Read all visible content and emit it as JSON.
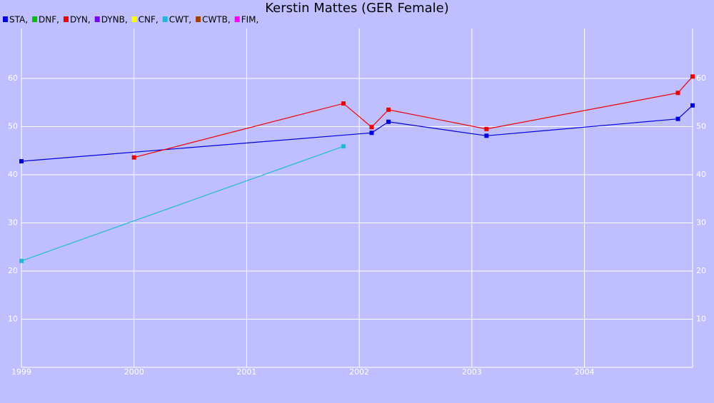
{
  "chart_data": {
    "type": "line",
    "title": "Kerstin Mattes (GER Female)",
    "xlim": [
      1999,
      2004.96
    ],
    "xticks": [
      1999,
      2000,
      2001,
      2002,
      2003,
      2004
    ],
    "ylim": [
      0,
      70
    ],
    "yticks": [
      10,
      20,
      30,
      40,
      50,
      60
    ],
    "grid": true,
    "series": [
      {
        "name": "STA,",
        "color": "#0000dd",
        "x": [
          1999.0,
          2002.11,
          2002.26,
          2003.13,
          2004.83,
          2004.96
        ],
        "values": [
          42.8,
          48.7,
          51.0,
          48.1,
          51.6,
          54.4
        ]
      },
      {
        "name": "DNF,",
        "color": "#00c000",
        "x": [],
        "values": []
      },
      {
        "name": "DYN,",
        "color": "#ee0000",
        "x": [
          2000.0,
          2001.86,
          2002.11,
          2002.26,
          2003.13,
          2004.83,
          2004.96
        ],
        "values": [
          43.6,
          54.8,
          49.9,
          53.5,
          49.5,
          57.0,
          60.4
        ]
      },
      {
        "name": "DYNB,",
        "color": "#7a00ff",
        "x": [],
        "values": []
      },
      {
        "name": "CNF,",
        "color": "#ffff00",
        "x": [],
        "values": []
      },
      {
        "name": "CWT,",
        "color": "#22b8d8",
        "x": [
          1999.0,
          2001.86
        ],
        "values": [
          22.1,
          45.9
        ]
      },
      {
        "name": "CWTB,",
        "color": "#a04000",
        "x": [],
        "values": []
      },
      {
        "name": "FIM,",
        "color": "#ff00ff",
        "x": [],
        "values": []
      }
    ]
  }
}
